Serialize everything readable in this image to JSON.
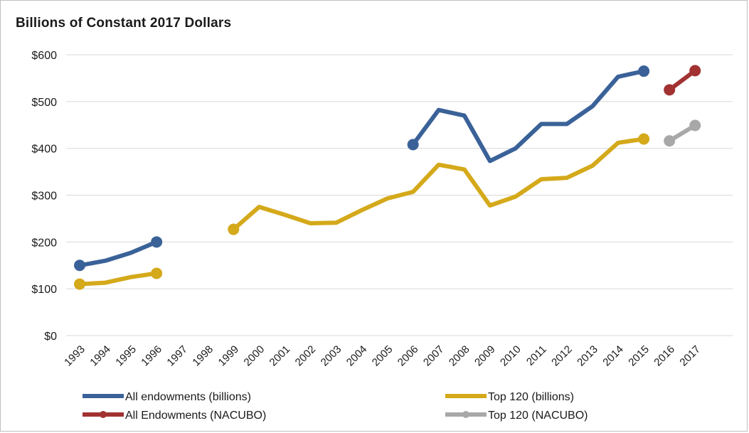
{
  "chart_data": {
    "type": "line",
    "title": "Billions of Constant 2017 Dollars",
    "xlabel": "",
    "ylabel": "",
    "ylim": [
      0,
      600
    ],
    "yticks": [
      "$0",
      "$100",
      "$200",
      "$300",
      "$400",
      "$500",
      "$600"
    ],
    "yticks_values": [
      0,
      100,
      200,
      300,
      400,
      500,
      600
    ],
    "categories": [
      "1993",
      "1994",
      "1995",
      "1996",
      "1997",
      "1998",
      "1999",
      "2000",
      "2001",
      "2002",
      "2003",
      "2004",
      "2005",
      "2006",
      "2007",
      "2008",
      "2009",
      "2010",
      "2011",
      "2012",
      "2013",
      "2014",
      "2015",
      "2016",
      "2017"
    ],
    "grid": true,
    "legend_position": "bottom",
    "series": [
      {
        "name": "All endowments (billions)",
        "color": "#3a6298",
        "segments": [
          [
            [
              "1993",
              150
            ],
            [
              "1994",
              160
            ],
            [
              "1995",
              177
            ],
            [
              "1996",
              200
            ]
          ],
          [
            [
              "2006",
              408
            ],
            [
              "2007",
              482
            ],
            [
              "2008",
              470
            ],
            [
              "2009",
              373
            ],
            [
              "2010",
              400
            ],
            [
              "2011",
              452
            ],
            [
              "2012",
              452
            ],
            [
              "2013",
              490
            ],
            [
              "2014",
              553
            ],
            [
              "2015",
              565
            ]
          ]
        ]
      },
      {
        "name": "Top 120 (billions)",
        "color": "#d4a91a",
        "segments": [
          [
            [
              "1993",
              110
            ],
            [
              "1994",
              113
            ],
            [
              "1995",
              125
            ],
            [
              "1996",
              133
            ]
          ],
          [
            [
              "1999",
              227
            ],
            [
              "2000",
              275
            ],
            [
              "2001",
              258
            ],
            [
              "2002",
              240
            ],
            [
              "2003",
              241
            ],
            [
              "2004",
              268
            ],
            [
              "2005",
              293
            ],
            [
              "2006",
              307
            ],
            [
              "2007",
              365
            ],
            [
              "2008",
              355
            ],
            [
              "2009",
              278
            ],
            [
              "2010",
              297
            ],
            [
              "2011",
              334
            ],
            [
              "2012",
              337
            ],
            [
              "2013",
              363
            ],
            [
              "2014",
              412
            ],
            [
              "2015",
              420
            ]
          ]
        ]
      },
      {
        "name": "All Endowments (NACUBO)",
        "color": "#a23232",
        "segments": [
          [
            [
              "2016",
              525
            ],
            [
              "2017",
              566
            ]
          ]
        ]
      },
      {
        "name": "Top 120 (NACUBO)",
        "color": "#a8a8a8",
        "segments": [
          [
            [
              "2016",
              416
            ],
            [
              "2017",
              449
            ]
          ]
        ]
      }
    ]
  }
}
